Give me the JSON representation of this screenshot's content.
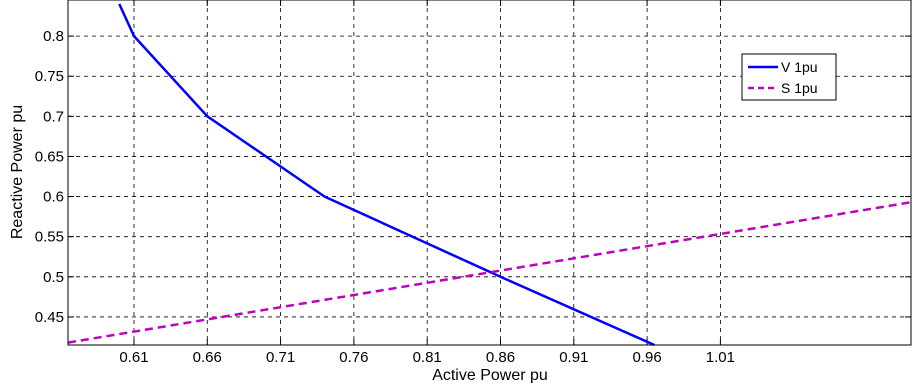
{
  "chart_data": {
    "type": "line",
    "xlabel": "Active Power pu",
    "ylabel": "Reactive Power pu",
    "xlim": [
      0.565,
      1.14
    ],
    "ylim": [
      0.415,
      0.845
    ],
    "x_ticks": [
      "0.61",
      "0.66",
      "0.71",
      "0.76",
      "0.81",
      "0.86",
      "0.91",
      "0.96",
      "1.01"
    ],
    "x_tick_values": [
      0.61,
      0.66,
      0.71,
      0.76,
      0.81,
      0.86,
      0.91,
      0.96,
      1.01
    ],
    "y_ticks": [
      "0.45",
      "0.5",
      "0.55",
      "0.6",
      "0.65",
      "0.7",
      "0.75",
      "0.8"
    ],
    "y_tick_values": [
      0.45,
      0.5,
      0.55,
      0.6,
      0.65,
      0.7,
      0.75,
      0.8
    ],
    "grid": true,
    "legend_position": "top-right",
    "series": [
      {
        "name": "V 1pu",
        "color": "#0000ff",
        "style": "solid",
        "x": [
          0.6,
          0.61,
          0.66,
          0.74,
          0.86,
          0.965
        ],
        "y": [
          0.84,
          0.8,
          0.7,
          0.6,
          0.5,
          0.415
        ]
      },
      {
        "name": "S 1pu",
        "color": "#bf00bf",
        "style": "dashed",
        "x": [
          0.565,
          1.14
        ],
        "y": [
          0.418,
          0.593
        ]
      }
    ]
  }
}
